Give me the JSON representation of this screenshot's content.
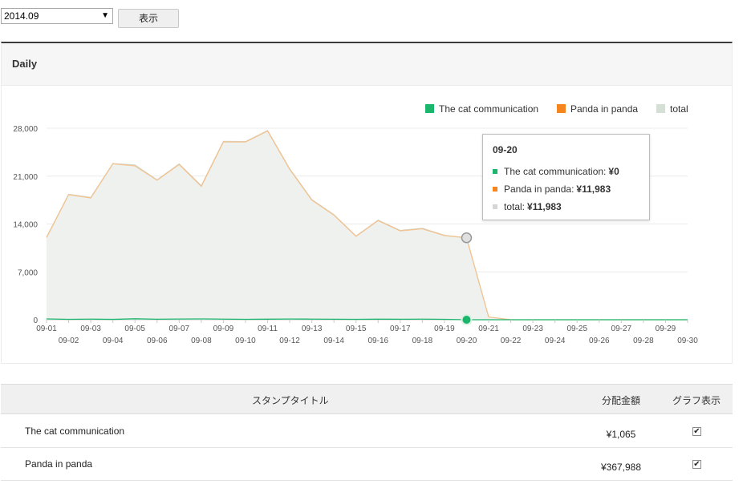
{
  "controls": {
    "month_value": "2014.09",
    "show_button": "表示"
  },
  "panel": {
    "title": "Daily"
  },
  "legend": [
    {
      "name": "The cat communication",
      "color": "#1bb56b"
    },
    {
      "name": "Panda in panda",
      "color": "#f5861f"
    },
    {
      "name": "total",
      "color": "#d6dfd6"
    }
  ],
  "tooltip": {
    "date": "09-20",
    "rows": [
      {
        "label": "The cat communication:",
        "value": "¥0",
        "color": "#1bb56b"
      },
      {
        "label": "Panda in panda:",
        "value": "¥11,983",
        "color": "#f5861f"
      },
      {
        "label": "total:",
        "value": "¥11,983",
        "color": "#d6d6d6"
      }
    ]
  },
  "chart_data": {
    "type": "area",
    "x": [
      "09-01",
      "09-02",
      "09-03",
      "09-04",
      "09-05",
      "09-06",
      "09-07",
      "09-08",
      "09-09",
      "09-10",
      "09-11",
      "09-12",
      "09-13",
      "09-14",
      "09-15",
      "09-16",
      "09-17",
      "09-18",
      "09-19",
      "09-20",
      "09-21",
      "09-22",
      "09-23",
      "09-24",
      "09-25",
      "09-26",
      "09-27",
      "09-28",
      "09-29",
      "09-30"
    ],
    "yticks": [
      0,
      7000,
      14000,
      21000,
      28000
    ],
    "ylim": [
      0,
      28000
    ],
    "series": [
      {
        "name": "The cat communication",
        "color": "#1bb56b",
        "values": [
          120,
          60,
          90,
          50,
          140,
          70,
          100,
          120,
          90,
          60,
          80,
          100,
          90,
          70,
          60,
          80,
          70,
          90,
          60,
          0,
          0,
          0,
          0,
          0,
          0,
          0,
          0,
          0,
          0,
          0
        ]
      },
      {
        "name": "Panda in panda",
        "color": "#f5861f",
        "values": [
          12000,
          18300,
          17800,
          22800,
          22500,
          20400,
          22700,
          19500,
          26000,
          26000,
          27600,
          22000,
          17500,
          15300,
          12200,
          14500,
          13000,
          13300,
          12300,
          11983,
          400,
          0,
          0,
          0,
          0,
          0,
          0,
          0,
          0,
          0
        ]
      },
      {
        "name": "total",
        "color": "#d6dfd6",
        "values": [
          12120,
          18360,
          17890,
          22850,
          22640,
          20470,
          22800,
          19620,
          26090,
          26060,
          27680,
          22100,
          17590,
          15370,
          12260,
          14580,
          13070,
          13390,
          12360,
          11983,
          400,
          0,
          0,
          0,
          0,
          0,
          0,
          0,
          0,
          0
        ]
      }
    ],
    "highlight_index": 19
  },
  "table": {
    "headers": {
      "title": "スタンプタイトル",
      "amount": "分配金額",
      "graph": "グラフ表示"
    },
    "rows": [
      {
        "title": "The cat communication",
        "amount": "¥1,065",
        "checked": true,
        "check": "✔"
      },
      {
        "title": "Panda in panda",
        "amount": "¥367,988",
        "checked": true,
        "check": "✔"
      }
    ]
  }
}
